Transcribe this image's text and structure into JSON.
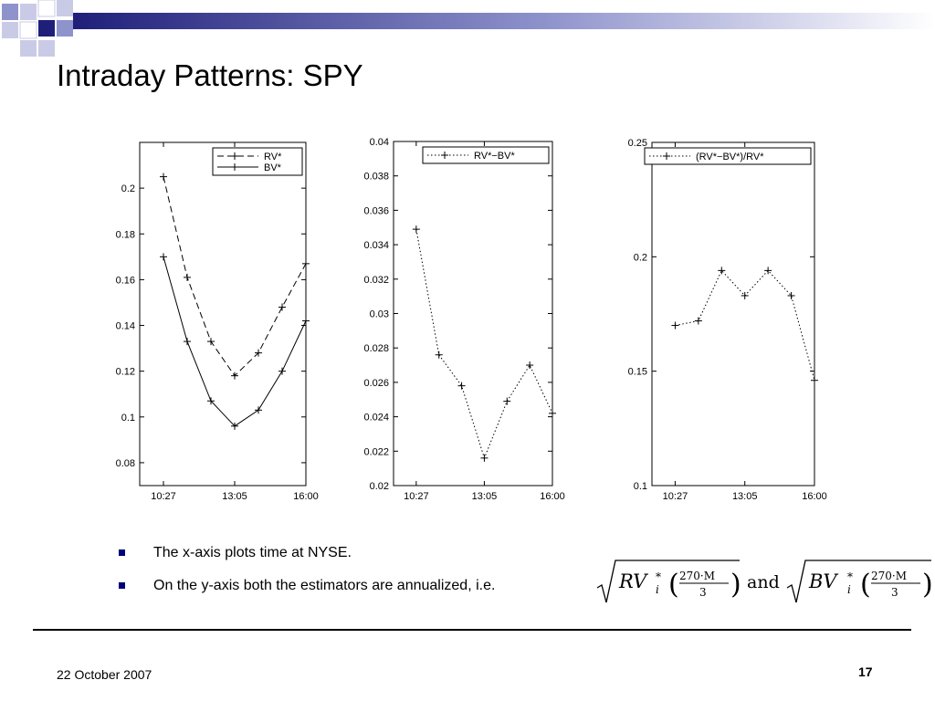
{
  "slide": {
    "title": "Intraday Patterns: SPY",
    "bullets": [
      "The x-axis plots time at NYSE.",
      "On the y-axis both the estimators are annualized, i.e."
    ],
    "formula": {
      "left_var": "RV",
      "right_var": "BV",
      "sub": "i",
      "sup": "*",
      "numerator": "270·M",
      "denominator": "3",
      "connector": "and"
    },
    "footer_date": "22 October 2007",
    "page_number": "17"
  },
  "colors": {
    "brand_navy": "#1f1f7a",
    "deco_blue": "#8f93cc",
    "deco_light": "#c9cbe6",
    "bullet": "#00007a"
  },
  "chart_data": [
    {
      "type": "line",
      "x_ticks": [
        "10:27",
        "13:05",
        "16:00"
      ],
      "y_ticks": [
        "0.08",
        "0.1",
        "0.12",
        "0.14",
        "0.16",
        "0.18",
        "0.2"
      ],
      "ylim": [
        0.07,
        0.22
      ],
      "x": [
        1,
        2,
        3,
        4,
        5,
        6,
        7
      ],
      "xlim": [
        0,
        7
      ],
      "series": [
        {
          "name": "RV*",
          "style": "dashed",
          "values": [
            0.205,
            0.161,
            0.133,
            0.118,
            0.128,
            0.148,
            0.167
          ]
        },
        {
          "name": "BV*",
          "style": "solid",
          "values": [
            0.17,
            0.133,
            0.107,
            0.096,
            0.103,
            0.12,
            0.142
          ]
        }
      ],
      "legend": "top-right"
    },
    {
      "type": "line",
      "x_ticks": [
        "10:27",
        "13:05",
        "16:00"
      ],
      "y_ticks": [
        "0.02",
        "0.022",
        "0.024",
        "0.026",
        "0.028",
        "0.03",
        "0.032",
        "0.034",
        "0.036",
        "0.038",
        "0.04"
      ],
      "ylim": [
        0.02,
        0.04
      ],
      "x": [
        1,
        2,
        3,
        4,
        5,
        6,
        7
      ],
      "xlim": [
        0,
        7
      ],
      "series": [
        {
          "name": "RV*−BV*",
          "style": "dotted",
          "values": [
            0.0349,
            0.0276,
            0.0258,
            0.0216,
            0.0249,
            0.027,
            0.0242
          ]
        }
      ],
      "legend": "top-right"
    },
    {
      "type": "line",
      "x_ticks": [
        "10:27",
        "13:05",
        "16:00"
      ],
      "y_ticks": [
        "0.1",
        "0.15",
        "0.2",
        "0.25"
      ],
      "ylim": [
        0.1,
        0.25
      ],
      "x": [
        1,
        2,
        3,
        4,
        5,
        6,
        7
      ],
      "xlim": [
        0,
        7
      ],
      "series": [
        {
          "name": "(RV*−BV*)/RV*",
          "style": "dotted",
          "values": [
            0.17,
            0.172,
            0.194,
            0.183,
            0.194,
            0.183,
            0.146
          ]
        }
      ],
      "legend": "top-right"
    }
  ]
}
